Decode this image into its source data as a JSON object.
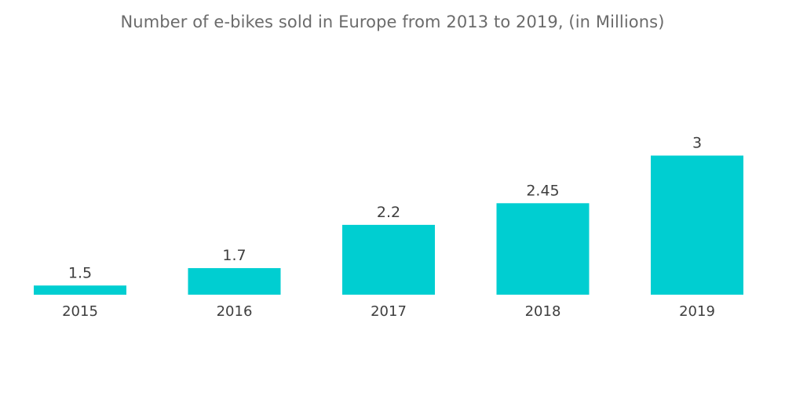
{
  "chart_data": {
    "type": "bar",
    "title": "Number of e-bikes sold in Europe from 2013 to 2019, (in Millions)",
    "categories": [
      "2015",
      "2016",
      "2017",
      "2018",
      "2019"
    ],
    "values": [
      1.5,
      1.7,
      2.2,
      2.45,
      3
    ],
    "value_labels": [
      "1.5",
      "1.7",
      "2.2",
      "2.45",
      "3"
    ],
    "xlabel": "",
    "ylabel": "",
    "ylim": [
      0,
      3
    ],
    "grid": false,
    "legend": "none",
    "bar_color": "#00CED1"
  }
}
